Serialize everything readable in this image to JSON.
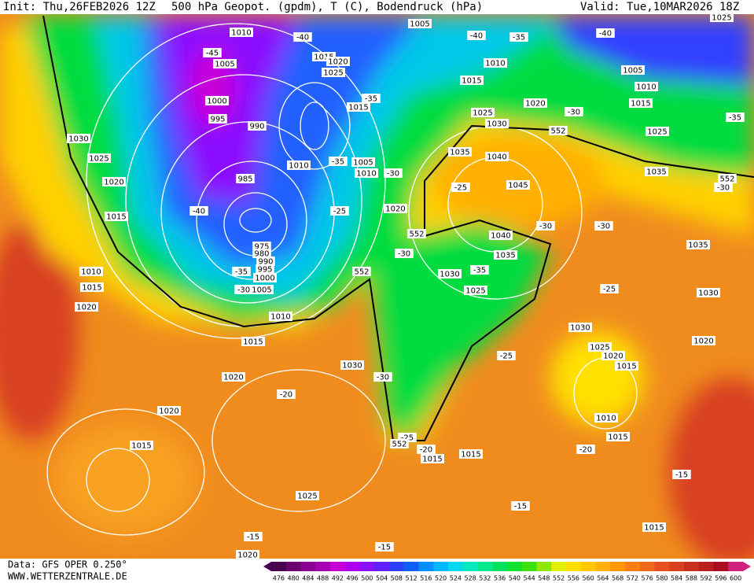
{
  "header": {
    "init": "Init: Thu,26FEB2026 12Z",
    "title": "500 hPa Geopot. (gpdm), T (C), Bodendruck (hPa)",
    "valid": "Valid: Tue,10MAR2026 18Z"
  },
  "footer": {
    "data": "Data: GFS OPER 0.250°",
    "site": "WWW.WETTERZENTRALE.DE"
  },
  "colorbar": {
    "ticks": [
      476,
      480,
      484,
      488,
      492,
      496,
      500,
      504,
      508,
      512,
      516,
      520,
      524,
      528,
      532,
      536,
      540,
      544,
      548,
      552,
      556,
      560,
      564,
      568,
      572,
      576,
      580,
      584,
      588,
      592,
      596,
      600
    ],
    "colors": [
      "#4a0050",
      "#6a0070",
      "#8a0090",
      "#a800b0",
      "#c800d8",
      "#b000f0",
      "#8a10ff",
      "#6020ff",
      "#3040ff",
      "#1060ff",
      "#0090ff",
      "#00b8ff",
      "#00d8f0",
      "#00e8c0",
      "#00e890",
      "#00e060",
      "#10e030",
      "#40e010",
      "#90e800",
      "#e0f000",
      "#ffe000",
      "#ffc800",
      "#ffb000",
      "#ff9800",
      "#f88010",
      "#f06818",
      "#e85020",
      "#d84020",
      "#c83020",
      "#b82020",
      "#a81020",
      "#d02080"
    ]
  },
  "map": {
    "labels": [
      "1010",
      "-40",
      "1005",
      "-40",
      "-35",
      "-40",
      "1025",
      "1015",
      "1020",
      "-45",
      "1005",
      "1025",
      "1010",
      "1005",
      "1015",
      "1010",
      "1000",
      "-35",
      "1015",
      "1020",
      "1015",
      "995",
      "990",
      "1025",
      "1030",
      "552",
      "-30",
      "1025",
      "-35",
      "1030",
      "1025",
      "1035",
      "1040",
      "1005",
      "-35",
      "1010",
      "1010",
      "985",
      "-30",
      "1035",
      "552",
      "-30",
      "1020",
      "-25",
      "1045",
      "-40",
      "-25",
      "1020",
      "1015",
      "-30",
      "-30",
      "552",
      "1040",
      "975",
      "980",
      "-30",
      "1035",
      "1035",
      "990",
      "995",
      "1000",
      "1010",
      "552",
      "1030",
      "-35",
      "1015",
      "-35",
      "-30",
      "1005",
      "1025",
      "-25",
      "1030",
      "1020",
      "1010",
      "1030",
      "1015",
      "1025",
      "1020",
      "-25",
      "1020",
      "1015",
      "1030",
      "1020",
      "-30",
      "-20",
      "1020",
      "1010",
      "-25",
      "1015",
      "1015",
      "552",
      "-20",
      "-20",
      "1015",
      "1015",
      "-15",
      "1025",
      "-15",
      "1015",
      "-15",
      "-15",
      "1020"
    ]
  }
}
